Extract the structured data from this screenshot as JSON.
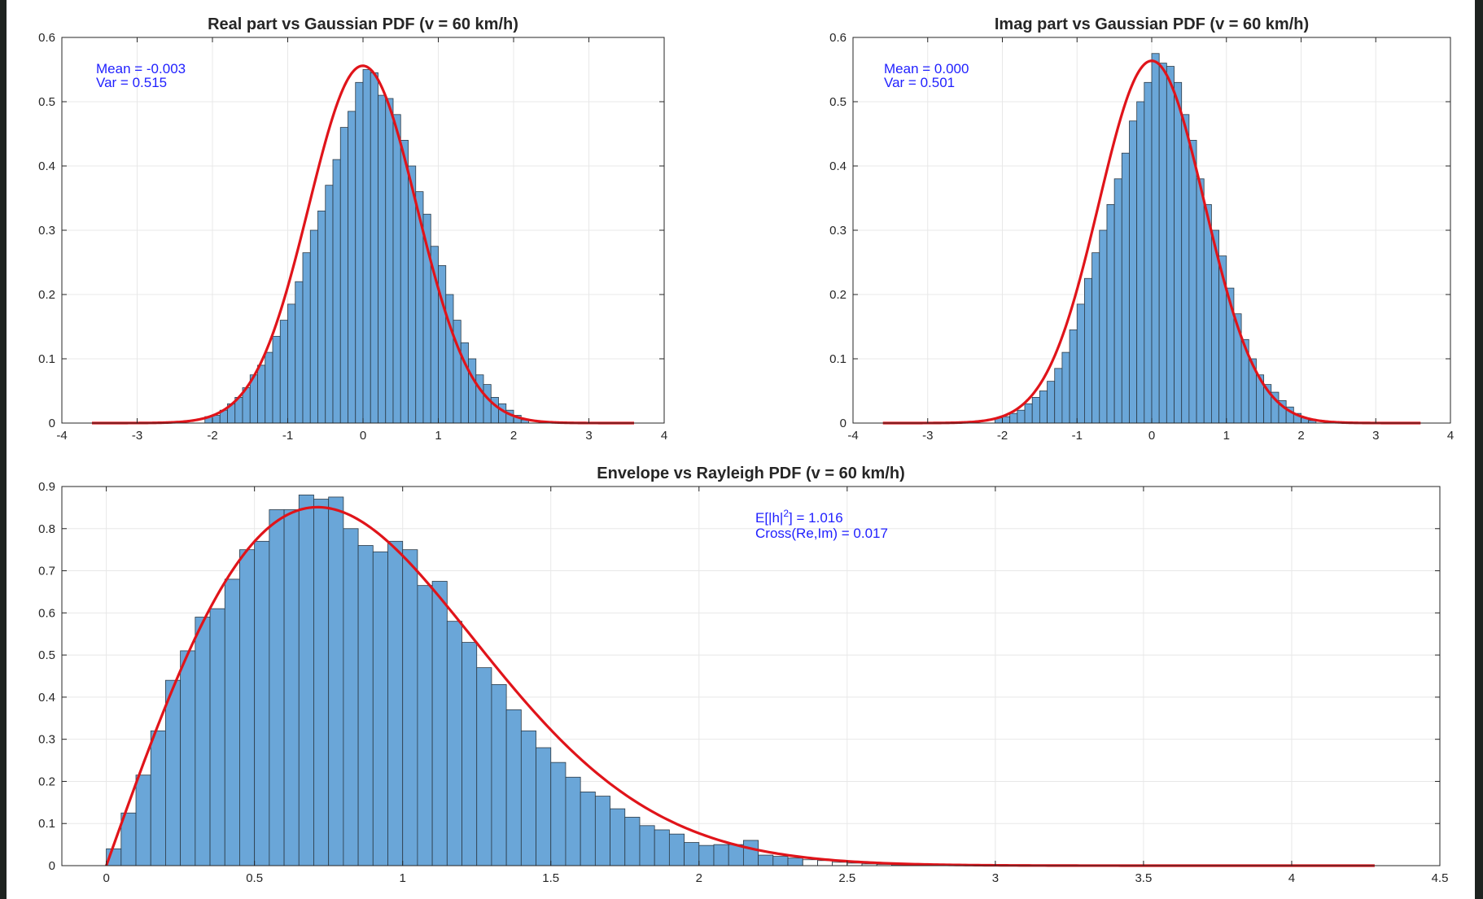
{
  "colors": {
    "bar_fill": "#6aa6d8",
    "bar_edge": "#2b3a46",
    "curve": "#e0141a",
    "grid": "#e8e8e8",
    "annotation": "#1f1fff",
    "frame_edge": "#1e2320"
  },
  "chart_data": [
    {
      "type": "bar",
      "title": "Real part vs Gaussian PDF (v = 60 km/h)",
      "xlim": [
        -4,
        4
      ],
      "ylim": [
        0,
        0.6
      ],
      "xticks": [
        "-4",
        "-3",
        "-2",
        "-1",
        "0",
        "1",
        "2",
        "3",
        "4"
      ],
      "yticks": [
        "0",
        "0.1",
        "0.2",
        "0.3",
        "0.4",
        "0.5",
        "0.6"
      ],
      "grid": true,
      "annotations": [
        "Mean = -0.003",
        "Var = 0.515"
      ],
      "histogram": {
        "bin_start": -2.1,
        "bin_width": 0.1,
        "values": [
          0.01,
          0.012,
          0.02,
          0.03,
          0.04,
          0.055,
          0.075,
          0.09,
          0.11,
          0.135,
          0.16,
          0.185,
          0.22,
          0.265,
          0.3,
          0.33,
          0.37,
          0.41,
          0.46,
          0.485,
          0.53,
          0.55,
          0.545,
          0.51,
          0.505,
          0.48,
          0.44,
          0.4,
          0.36,
          0.325,
          0.275,
          0.245,
          0.2,
          0.16,
          0.125,
          0.1,
          0.075,
          0.06,
          0.04,
          0.03,
          0.02,
          0.012,
          0.005
        ]
      },
      "curve": {
        "name": "Gaussian PDF",
        "mean": -0.003,
        "var": 0.515,
        "x_range": [
          -3.6,
          3.6
        ]
      }
    },
    {
      "type": "bar",
      "title": "Imag part vs Gaussian PDF (v = 60 km/h)",
      "xlim": [
        -4,
        4
      ],
      "ylim": [
        0,
        0.6
      ],
      "xticks": [
        "-4",
        "-3",
        "-2",
        "-1",
        "0",
        "1",
        "2",
        "3",
        "4"
      ],
      "yticks": [
        "0",
        "0.1",
        "0.2",
        "0.3",
        "0.4",
        "0.5",
        "0.6"
      ],
      "grid": true,
      "annotations": [
        "Mean = 0.000",
        "Var = 0.501"
      ],
      "histogram": {
        "bin_start": -2.1,
        "bin_width": 0.1,
        "values": [
          0.008,
          0.01,
          0.015,
          0.02,
          0.03,
          0.04,
          0.05,
          0.065,
          0.085,
          0.11,
          0.145,
          0.185,
          0.225,
          0.265,
          0.3,
          0.34,
          0.38,
          0.42,
          0.47,
          0.5,
          0.53,
          0.575,
          0.56,
          0.555,
          0.53,
          0.48,
          0.44,
          0.38,
          0.34,
          0.3,
          0.26,
          0.21,
          0.17,
          0.13,
          0.1,
          0.075,
          0.06,
          0.048,
          0.035,
          0.025,
          0.015,
          0.008,
          0.004
        ]
      },
      "curve": {
        "name": "Gaussian PDF",
        "mean": 0.0,
        "var": 0.501,
        "x_range": [
          -3.6,
          3.6
        ]
      }
    },
    {
      "type": "bar",
      "title": "Envelope vs Rayleigh PDF (v = 60 km/h)",
      "xlim": [
        -0.15,
        4.5
      ],
      "ylim": [
        0,
        0.9
      ],
      "xticks": [
        "0",
        "0.5",
        "1",
        "1.5",
        "2",
        "2.5",
        "3",
        "3.5",
        "4",
        "4.5"
      ],
      "yticks": [
        "0",
        "0.1",
        "0.2",
        "0.3",
        "0.4",
        "0.5",
        "0.6",
        "0.7",
        "0.8",
        "0.9"
      ],
      "grid": true,
      "annotations": [
        "E[|h|",
        "2",
        "]  =  1.016",
        "Cross(Re,Im)  =  0.017"
      ],
      "histogram": {
        "bin_start": 0.0,
        "bin_width": 0.05,
        "values": [
          0.04,
          0.125,
          0.215,
          0.32,
          0.44,
          0.51,
          0.59,
          0.61,
          0.68,
          0.75,
          0.77,
          0.845,
          0.845,
          0.88,
          0.87,
          0.875,
          0.8,
          0.76,
          0.745,
          0.77,
          0.75,
          0.665,
          0.675,
          0.58,
          0.53,
          0.47,
          0.43,
          0.37,
          0.32,
          0.28,
          0.245,
          0.21,
          0.175,
          0.165,
          0.135,
          0.115,
          0.095,
          0.085,
          0.075,
          0.055,
          0.048,
          0.05,
          0.05,
          0.06,
          0.025,
          0.022,
          0.018,
          0.014,
          0.012,
          0.008,
          0.006,
          0.004,
          0.003,
          0.002,
          0.002,
          0.001,
          0.001,
          0.001
        ],
        "edge_only_from": 0.05
      },
      "curve": {
        "name": "Rayleigh PDF",
        "sigma2": 0.508,
        "x_range": [
          0.0,
          4.28
        ]
      }
    }
  ]
}
